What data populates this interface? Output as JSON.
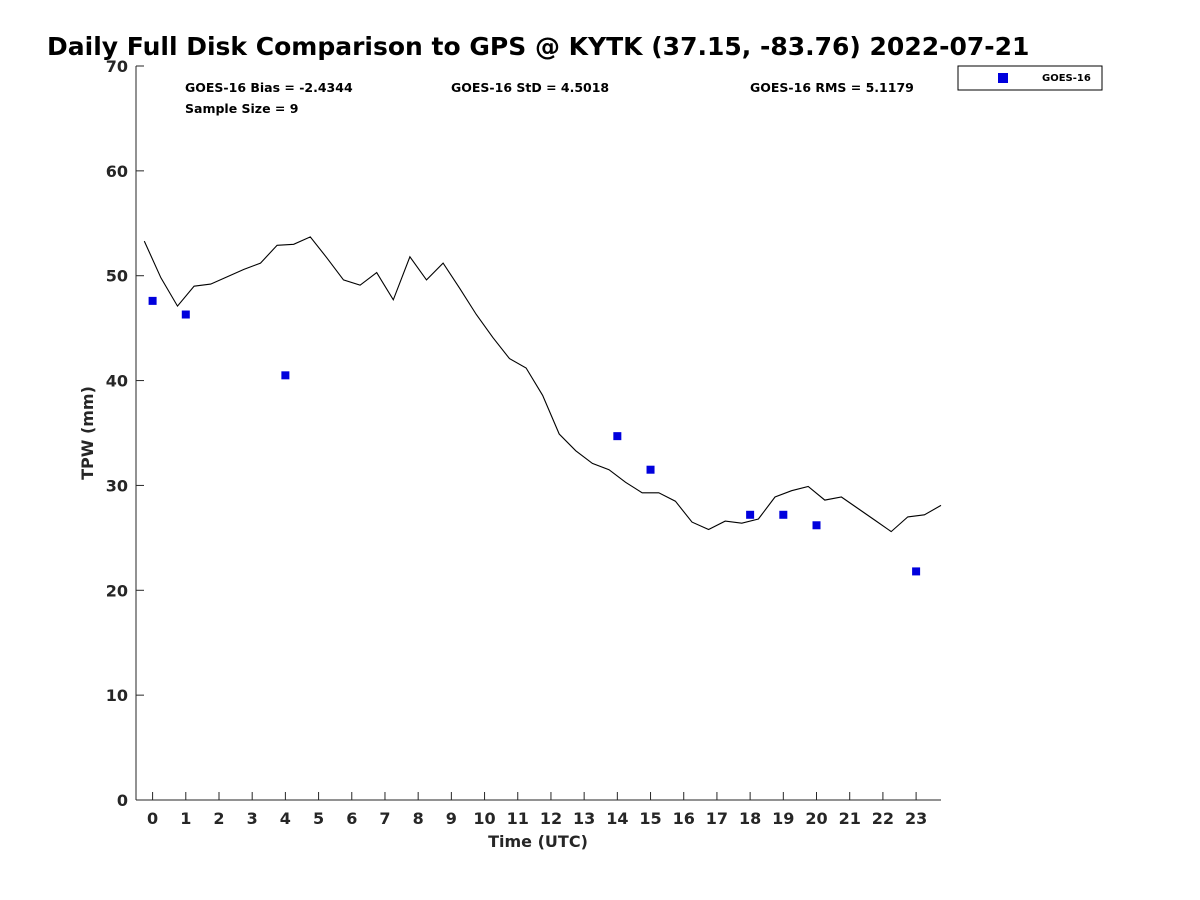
{
  "chart_data": {
    "type": "scatter",
    "title": "Daily Full Disk Comparison to GPS @ KYTK (37.15, -83.76) 2022-07-21",
    "xlabel": "Time (UTC)",
    "ylabel": "TPW (mm)",
    "xlim": [
      -0.5,
      23.75
    ],
    "ylim": [
      0,
      70
    ],
    "xticks": [
      0,
      1,
      2,
      3,
      4,
      5,
      6,
      7,
      8,
      9,
      10,
      11,
      12,
      13,
      14,
      15,
      16,
      17,
      18,
      19,
      20,
      21,
      22,
      23
    ],
    "yticks": [
      0,
      10,
      20,
      30,
      40,
      50,
      60,
      70
    ],
    "grid": false,
    "legend_position": "top-right outside",
    "stats": {
      "bias": "GOES-16 Bias = -2.4344",
      "std": "GOES-16 StD = 4.5018",
      "rms": "GOES-16 RMS = 5.1179",
      "sample": "Sample Size = 9"
    },
    "series": [
      {
        "name": "GOES-16",
        "kind": "scatter",
        "marker": "square",
        "color": "#0000dd",
        "x": [
          0,
          1,
          4,
          14,
          15,
          18,
          19,
          20,
          23
        ],
        "y": [
          47.6,
          46.3,
          40.5,
          34.7,
          31.5,
          27.2,
          27.2,
          26.2,
          21.8
        ]
      },
      {
        "kind": "line",
        "color": "#000000",
        "x": [
          -0.25,
          0.25,
          0.75,
          1.25,
          1.75,
          2.25,
          2.75,
          3.25,
          3.75,
          4.25,
          4.75,
          5.25,
          5.75,
          6.25,
          6.75,
          7.25,
          7.75,
          8.25,
          8.75,
          9.25,
          9.75,
          10.25,
          10.75,
          11.25,
          11.75,
          12.25,
          12.75,
          13.25,
          13.75,
          14.25,
          14.75,
          15.25,
          15.75,
          16.25,
          16.75,
          17.25,
          17.75,
          18.25,
          18.75,
          19.25,
          19.75,
          20.25,
          20.75,
          21.25,
          21.75,
          22.25,
          22.75,
          23.25,
          23.75
        ],
        "y": [
          53.3,
          49.8,
          47.1,
          49.0,
          49.2,
          49.9,
          50.6,
          51.2,
          52.9,
          53.0,
          53.7,
          51.7,
          49.6,
          49.1,
          50.3,
          47.7,
          51.8,
          49.6,
          51.2,
          48.8,
          46.3,
          44.1,
          42.1,
          41.2,
          38.6,
          34.9,
          33.3,
          32.1,
          31.5,
          30.3,
          29.3,
          29.3,
          28.5,
          26.5,
          25.8,
          26.6,
          26.4,
          26.8,
          28.9,
          29.5,
          29.9,
          28.6,
          28.9,
          27.8,
          26.7,
          25.6,
          27.0,
          27.2,
          28.1
        ]
      }
    ]
  }
}
